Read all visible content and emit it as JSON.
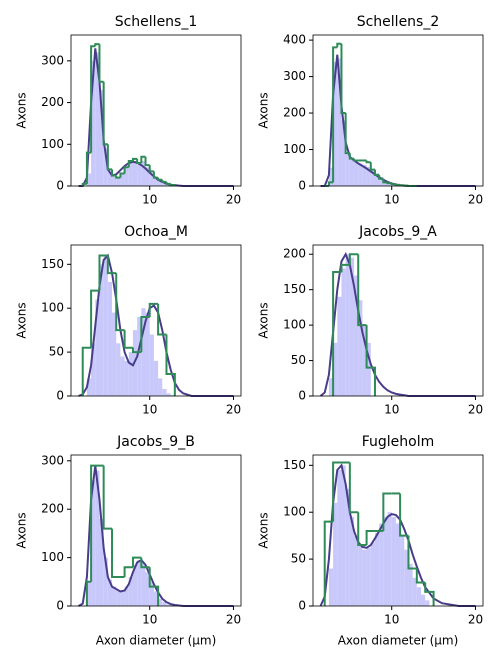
{
  "chart_data": [
    {
      "type": "histogram",
      "title": "Schellens_1",
      "ylabel": "Axons",
      "xlim": [
        0.6,
        20.9
      ],
      "ylim": [
        0,
        362
      ],
      "xticks": [
        10,
        20
      ],
      "yticks": [
        0,
        100,
        200,
        300
      ],
      "series": [
        {
          "type": "bar",
          "color": "#c8c8fa",
          "bins": [
            2.5,
            3,
            3.5,
            4,
            4.5,
            5,
            5.5,
            6,
            6.5,
            7,
            7.5,
            8,
            8.5,
            9,
            9.5,
            10,
            10.5,
            11,
            11.5,
            12,
            12.5,
            13,
            13.5,
            14,
            14.5
          ],
          "values": [
            30,
            300,
            320,
            230,
            90,
            35,
            22,
            18,
            28,
            42,
            55,
            60,
            55,
            60,
            45,
            30,
            18,
            12,
            8,
            5,
            3,
            2,
            1,
            0
          ]
        },
        {
          "type": "line",
          "color": "#483d8b",
          "x": [
            1.5,
            2,
            2.5,
            3,
            3.5,
            4,
            4.5,
            5,
            5.5,
            6,
            6.5,
            7,
            7.5,
            8,
            8.5,
            9,
            9.5,
            10,
            10.5,
            11,
            11.5,
            12,
            12.5,
            13,
            13.5,
            14,
            15,
            16,
            18,
            20
          ],
          "values": [
            0,
            0,
            20,
            200,
            330,
            250,
            110,
            40,
            25,
            28,
            38,
            48,
            55,
            58,
            56,
            50,
            42,
            32,
            23,
            15,
            10,
            6,
            3,
            2,
            1,
            0,
            0,
            0,
            0,
            0
          ]
        },
        {
          "type": "step",
          "color": "#2e8b57",
          "bins": [
            2,
            2.5,
            3,
            3.5,
            4,
            4.5,
            5,
            5.5,
            6,
            6.5,
            7,
            7.5,
            8,
            8.5,
            9,
            9.5,
            10,
            10.5,
            11,
            11.5,
            12,
            12.5,
            13
          ],
          "values": [
            5,
            80,
            335,
            340,
            250,
            100,
            40,
            25,
            20,
            30,
            45,
            60,
            65,
            55,
            70,
            50,
            35,
            20,
            15,
            10,
            5,
            2
          ]
        }
      ]
    },
    {
      "type": "histogram",
      "title": "Schellens_2",
      "ylabel": "Axons",
      "xlim": [
        0.6,
        20.9
      ],
      "ylim": [
        0,
        414
      ],
      "xticks": [
        10,
        20
      ],
      "yticks": [
        0,
        100,
        200,
        300,
        400
      ],
      "series": [
        {
          "type": "bar",
          "color": "#c8c8fa",
          "bins": [
            2.5,
            3,
            3.5,
            4,
            4.5,
            5,
            5.5,
            6,
            6.5,
            7,
            7.5,
            8,
            8.5,
            9,
            9.5,
            10,
            10.5,
            11,
            11.5,
            12,
            12.5,
            13,
            13.5,
            14,
            14.5
          ],
          "values": [
            50,
            340,
            350,
            180,
            90,
            72,
            65,
            62,
            58,
            52,
            45,
            35,
            25,
            16,
            10,
            6,
            4,
            2,
            1,
            0,
            0,
            0,
            0,
            0
          ]
        },
        {
          "type": "line",
          "color": "#483d8b",
          "x": [
            1.5,
            2,
            2.5,
            3,
            3.5,
            4,
            4.5,
            5,
            5.5,
            6,
            6.5,
            7,
            7.5,
            8,
            8.5,
            9,
            9.5,
            10,
            10.5,
            11,
            11.5,
            12,
            12.5,
            13,
            13.5,
            14,
            15,
            16,
            18,
            20
          ],
          "values": [
            0,
            0,
            30,
            250,
            360,
            220,
            120,
            80,
            70,
            62,
            55,
            48,
            40,
            32,
            24,
            17,
            11,
            7,
            4,
            2,
            1,
            0,
            0,
            0,
            0,
            0,
            0,
            0,
            0,
            0
          ]
        },
        {
          "type": "step",
          "color": "#2e8b57",
          "bins": [
            2,
            2.5,
            3,
            3.5,
            4,
            4.5,
            5,
            5.5,
            6,
            6.5,
            7,
            7.5,
            8,
            8.5,
            9,
            9.5,
            10,
            10.5,
            11,
            11.5,
            12,
            12.5,
            13
          ],
          "values": [
            0,
            10,
            380,
            390,
            200,
            90,
            75,
            70,
            70,
            70,
            65,
            45,
            30,
            20,
            10,
            8,
            5,
            3,
            2,
            1,
            0,
            0
          ]
        }
      ]
    },
    {
      "type": "histogram",
      "title": "Ochoa_M",
      "ylabel": "Axons",
      "xlim": [
        0.6,
        20.9
      ],
      "ylim": [
        0,
        172
      ],
      "xticks": [
        10,
        20
      ],
      "yticks": [
        0,
        50,
        100,
        150
      ],
      "series": [
        {
          "type": "bar",
          "color": "#c8c8fa",
          "bins": [
            2.5,
            3,
            3.5,
            4,
            4.5,
            5,
            5.5,
            6,
            6.5,
            7,
            7.5,
            8,
            8.5,
            9,
            9.5,
            10,
            10.5,
            11,
            11.5,
            12,
            12.5,
            13,
            13.5,
            14,
            14.5
          ],
          "values": [
            20,
            60,
            110,
            150,
            160,
            130,
            95,
            60,
            45,
            40,
            50,
            75,
            90,
            100,
            95,
            70,
            40,
            20,
            8,
            3,
            1,
            0,
            0,
            0
          ]
        },
        {
          "type": "line",
          "color": "#483d8b",
          "x": [
            1.5,
            2,
            2.5,
            3,
            3.5,
            4,
            4.5,
            5,
            5.5,
            6,
            6.5,
            7,
            7.5,
            8,
            8.5,
            9,
            9.5,
            10,
            10.5,
            11,
            11.5,
            12,
            12.5,
            13,
            13.5,
            14,
            15,
            16,
            18,
            20
          ],
          "values": [
            0,
            2,
            10,
            35,
            80,
            125,
            155,
            160,
            140,
            110,
            75,
            50,
            38,
            35,
            45,
            65,
            85,
            100,
            103,
            95,
            75,
            50,
            30,
            15,
            7,
            3,
            0,
            0,
            0,
            0
          ]
        },
        {
          "type": "step",
          "color": "#2e8b57",
          "bins": [
            2,
            3,
            4,
            5,
            6,
            7,
            8,
            9,
            10,
            11,
            12,
            13
          ],
          "values": [
            55,
            120,
            160,
            140,
            75,
            55,
            50,
            90,
            105,
            70,
            25
          ]
        }
      ]
    },
    {
      "type": "histogram",
      "title": "Jacobs_9_A",
      "ylabel": "Axons",
      "xlim": [
        0.6,
        20.9
      ],
      "ylim": [
        0,
        213
      ],
      "xticks": [
        10,
        20
      ],
      "yticks": [
        0,
        50,
        100,
        150,
        200
      ],
      "series": [
        {
          "type": "bar",
          "color": "#c8c8fa",
          "bins": [
            2.5,
            3,
            3.5,
            4,
            4.5,
            5,
            5.5,
            6,
            6.5,
            7,
            7.5,
            8,
            8.5,
            9,
            9.5,
            10,
            10.5,
            11,
            11.5,
            12,
            12.5,
            13,
            13.5,
            14,
            14.5
          ],
          "values": [
            25,
            75,
            140,
            180,
            200,
            195,
            170,
            135,
            100,
            75,
            0,
            0,
            0,
            0,
            0,
            0,
            0,
            0,
            0,
            0,
            0,
            0,
            0,
            0
          ]
        },
        {
          "type": "line",
          "color": "#483d8b",
          "x": [
            1.5,
            2,
            2.5,
            3,
            3.5,
            4,
            4.5,
            5,
            5.5,
            6,
            6.5,
            7,
            7.5,
            8,
            8.5,
            9,
            9.5,
            10,
            10.5,
            11,
            11.5,
            12,
            12.5,
            13,
            13.5,
            14,
            15,
            16,
            18,
            20
          ],
          "values": [
            0,
            5,
            30,
            90,
            150,
            190,
            200,
            185,
            155,
            120,
            90,
            65,
            45,
            30,
            20,
            13,
            8,
            5,
            3,
            2,
            1,
            0,
            0,
            0,
            0,
            0,
            0,
            0,
            0,
            0
          ]
        },
        {
          "type": "step",
          "color": "#2e8b57",
          "bins": [
            3,
            4,
            5,
            6,
            7,
            8
          ],
          "values": [
            175,
            185,
            200,
            100,
            40
          ]
        }
      ]
    },
    {
      "type": "histogram",
      "title": "Jacobs_9_B",
      "ylabel": "Axons",
      "xlabel": "Axon diameter (μm)",
      "xlim": [
        0.6,
        20.9
      ],
      "ylim": [
        0,
        312
      ],
      "xticks": [
        10,
        20
      ],
      "yticks": [
        0,
        100,
        200,
        300
      ],
      "series": [
        {
          "type": "bar",
          "color": "#c8c8fa",
          "bins": [
            2.5,
            3,
            3.5,
            4,
            4.5,
            5,
            5.5,
            6,
            6.5,
            7,
            7.5,
            8,
            8.5,
            9,
            9.5,
            10,
            10.5,
            11,
            11.5,
            12,
            12.5,
            13,
            13.5,
            14,
            14.5
          ],
          "values": [
            50,
            260,
            280,
            180,
            100,
            55,
            40,
            32,
            30,
            40,
            60,
            85,
            95,
            90,
            70,
            50,
            30,
            15,
            8,
            3,
            1,
            0,
            0,
            0
          ]
        },
        {
          "type": "line",
          "color": "#483d8b",
          "x": [
            1.5,
            2,
            2.5,
            3,
            3.5,
            4,
            4.5,
            5,
            5.5,
            6,
            6.5,
            7,
            7.5,
            8,
            8.5,
            9,
            9.5,
            10,
            10.5,
            11,
            11.5,
            12,
            12.5,
            13,
            13.5,
            14,
            15,
            16,
            18,
            20
          ],
          "values": [
            0,
            5,
            60,
            220,
            290,
            220,
            120,
            60,
            40,
            35,
            30,
            32,
            45,
            70,
            90,
            95,
            85,
            65,
            45,
            28,
            15,
            8,
            4,
            2,
            1,
            0,
            0,
            0,
            0,
            0
          ]
        },
        {
          "type": "step",
          "color": "#2e8b57",
          "bins": [
            2.5,
            3,
            4.5,
            5.5,
            7,
            8,
            9,
            10,
            11
          ],
          "values": [
            50,
            290,
            160,
            60,
            80,
            100,
            80,
            40
          ]
        }
      ]
    },
    {
      "type": "histogram",
      "title": "Fugleholm",
      "ylabel": "Axons",
      "xlabel": "Axon diameter (μm)",
      "xlim": [
        0.6,
        20.9
      ],
      "ylim": [
        0,
        161
      ],
      "xticks": [
        10,
        20
      ],
      "yticks": [
        0,
        50,
        100,
        150
      ],
      "series": [
        {
          "type": "bar",
          "color": "#c8c8fa",
          "bins": [
            2.5,
            3,
            3.5,
            4,
            4.5,
            5,
            5.5,
            6,
            6.5,
            7,
            7.5,
            8,
            8.5,
            9,
            9.5,
            10,
            10.5,
            11,
            11.5,
            12,
            12.5,
            13,
            13.5,
            14,
            14.5
          ],
          "values": [
            40,
            110,
            145,
            150,
            125,
            95,
            75,
            65,
            60,
            62,
            68,
            78,
            88,
            95,
            100,
            95,
            88,
            75,
            60,
            45,
            30,
            20,
            12,
            6
          ]
        },
        {
          "type": "line",
          "color": "#483d8b",
          "x": [
            1.5,
            2,
            2.5,
            3,
            3.5,
            4,
            4.5,
            5,
            5.5,
            6,
            6.5,
            7,
            7.5,
            8,
            8.5,
            9,
            9.5,
            10,
            10.5,
            11,
            11.5,
            12,
            12.5,
            13,
            13.5,
            14,
            15,
            16,
            18,
            20
          ],
          "values": [
            0,
            10,
            50,
            110,
            145,
            150,
            130,
            100,
            80,
            68,
            63,
            62,
            65,
            72,
            80,
            88,
            95,
            98,
            97,
            92,
            82,
            70,
            55,
            42,
            30,
            20,
            8,
            3,
            0,
            0
          ]
        },
        {
          "type": "step",
          "color": "#2e8b57",
          "bins": [
            2,
            3,
            4,
            5,
            6,
            7,
            8,
            9,
            10,
            11,
            12,
            13,
            14,
            15
          ],
          "values": [
            90,
            153,
            153,
            100,
            65,
            80,
            80,
            120,
            120,
            75,
            40,
            25,
            15
          ]
        }
      ]
    }
  ]
}
